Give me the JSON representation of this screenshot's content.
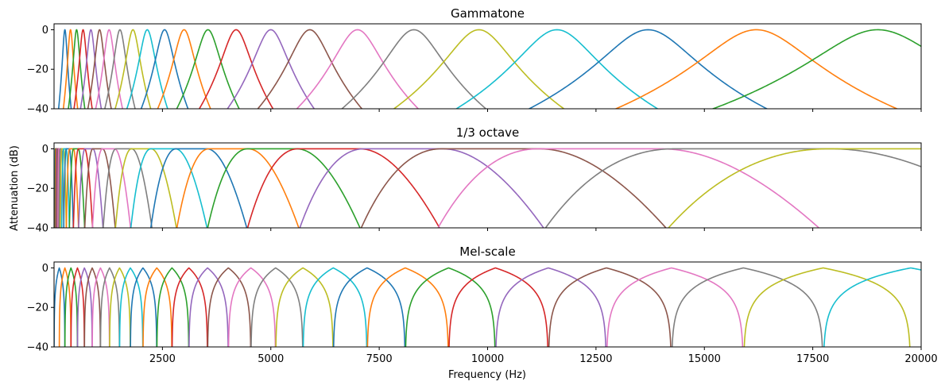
{
  "figure": {
    "ylabel": "Attenuation (dB)",
    "xlabel": "Frequency (Hz)"
  },
  "chart_data": [
    {
      "type": "line",
      "title": "Gammatone",
      "xlim": [
        0,
        20000
      ],
      "ylim": [
        -40,
        3
      ],
      "yticks": [
        0,
        -20,
        -40
      ],
      "ytick_labels": [
        "0",
        "−20",
        "−40"
      ],
      "xticks": [
        2500,
        5000,
        7500,
        10000,
        12500,
        15000,
        17500,
        20000
      ],
      "show_x_tick_labels": false,
      "filter_shape": "gammatone",
      "center_frequencies": [
        250,
        380,
        520,
        670,
        850,
        1050,
        1270,
        1520,
        1820,
        2150,
        2550,
        3000,
        3550,
        4200,
        5000,
        5900,
        7000,
        8300,
        9800,
        11600,
        13700,
        16200,
        19000
      ],
      "half_widths_at_-40dB": [
        145,
        165,
        190,
        210,
        240,
        270,
        310,
        350,
        410,
        470,
        540,
        610,
        720,
        850,
        1000,
        1200,
        1400,
        1660,
        1960,
        2320,
        2740,
        3240,
        3800
      ]
    },
    {
      "type": "line",
      "title": "1/3 octave",
      "xlim": [
        0,
        20000
      ],
      "ylim": [
        -40,
        3
      ],
      "yticks": [
        0,
        -20,
        -40
      ],
      "ytick_labels": [
        "0",
        "−20",
        "−40"
      ],
      "xticks": [
        2500,
        5000,
        7500,
        10000,
        12500,
        15000,
        17500,
        20000
      ],
      "show_x_tick_labels": false,
      "filter_shape": "third-octave",
      "center_frequencies": [
        31.5,
        40,
        50,
        63,
        80,
        100,
        125,
        160,
        200,
        250,
        315,
        400,
        500,
        630,
        800,
        1000,
        1250,
        1600,
        2000,
        2500,
        3150,
        4000,
        5000,
        6300,
        8000,
        10000,
        12500,
        16000,
        20000
      ],
      "flat_top_ratio": 1.12,
      "transition_ratio": 1.26
    },
    {
      "type": "line",
      "title": "Mel-scale",
      "xlim": [
        0,
        20000
      ],
      "ylim": [
        -40,
        3
      ],
      "yticks": [
        0,
        -20,
        -40
      ],
      "ytick_labels": [
        "0",
        "−20",
        "−40"
      ],
      "xticks": [
        2500,
        5000,
        7500,
        10000,
        12500,
        15000,
        17500,
        20000
      ],
      "xtick_labels": [
        "2500",
        "5000",
        "7500",
        "10000",
        "12500",
        "15000",
        "17500",
        "20000"
      ],
      "show_x_tick_labels": true,
      "filter_shape": "triangular-mel",
      "band_edges": [
        0,
        120,
        250,
        390,
        540,
        700,
        880,
        1070,
        1280,
        1510,
        1760,
        2050,
        2370,
        2720,
        3110,
        3540,
        4020,
        4540,
        5110,
        5740,
        6440,
        7220,
        8100,
        9100,
        10180,
        11400,
        12740,
        14240,
        15900,
        17740,
        19760,
        21900
      ]
    }
  ],
  "colors": [
    "#1f77b4",
    "#ff7f0e",
    "#2ca02c",
    "#d62728",
    "#9467bd",
    "#8c564b",
    "#e377c2",
    "#7f7f7f",
    "#bcbd22",
    "#17becf"
  ]
}
